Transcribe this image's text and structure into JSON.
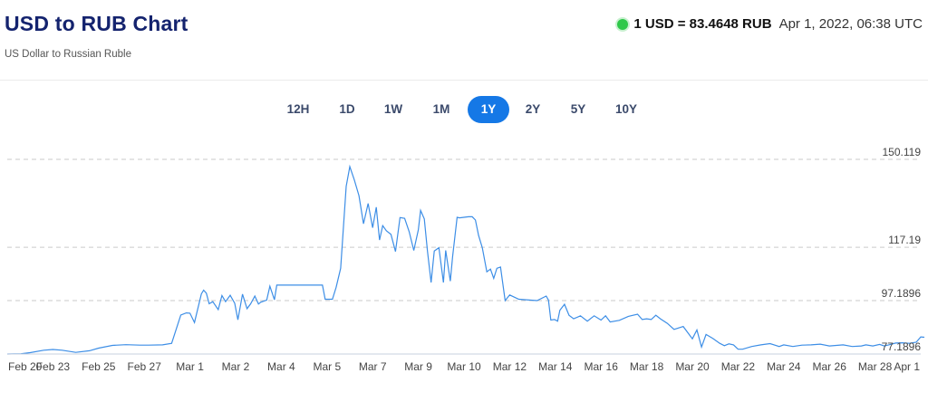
{
  "header": {
    "title": "USD to RUB Chart",
    "subtitle": "US Dollar to Russian Ruble",
    "rate": "1 USD = 83.4648 RUB",
    "timestamp": "Apr 1, 2022, 06:38 UTC",
    "live_color": "#2fc84a"
  },
  "ranges": {
    "items": [
      "12H",
      "1D",
      "1W",
      "1M",
      "1Y",
      "2Y",
      "5Y",
      "10Y"
    ],
    "active": "1Y",
    "accent": "#1578e6"
  },
  "chart_data": {
    "type": "line",
    "title": "",
    "xlabel": "",
    "ylabel": "",
    "ylim": [
      77.1896,
      150.119
    ],
    "y_ticks": [
      150.119,
      117.19,
      97.1896,
      77.1896
    ],
    "x_ticks": [
      "Feb 20",
      "Feb 23",
      "Feb 25",
      "Feb 27",
      "Mar 1",
      "Mar 2",
      "Mar 4",
      "Mar 5",
      "Mar 7",
      "Mar 9",
      "Mar 10",
      "Mar 12",
      "Mar 14",
      "Mar 16",
      "Mar 18",
      "Mar 20",
      "Mar 22",
      "Mar 24",
      "Mar 26",
      "Mar 28",
      "Apr 1"
    ],
    "line_color": "#3d8ee6",
    "grid": "horizontal dashed",
    "series": [
      {
        "x": [
          0,
          0.3,
          0.5,
          0.8,
          1.0,
          1.2,
          1.5,
          1.8,
          2.0,
          2.3,
          2.6,
          2.9,
          3.1,
          3.4,
          3.6,
          3.8,
          3.92,
          4.0,
          4.1,
          4.25,
          4.3,
          4.36,
          4.42,
          4.5,
          4.62,
          4.7,
          4.78,
          4.88,
          4.98,
          5.05,
          5.15,
          5.25,
          5.33,
          5.42,
          5.5,
          5.55,
          5.68,
          5.75,
          5.85,
          5.9,
          6.3,
          6.7,
          6.9,
          6.96,
          7.02,
          7.12,
          7.2,
          7.3,
          7.42,
          7.5,
          7.6,
          7.7,
          7.8,
          7.9,
          8.0,
          8.08,
          8.15,
          8.22,
          8.3,
          8.4,
          8.5,
          8.6,
          8.7,
          8.8,
          8.9,
          9.0,
          9.05,
          9.13,
          9.2,
          9.28,
          9.35,
          9.45,
          9.55,
          9.6,
          9.7,
          9.75,
          9.85,
          9.9,
          10.0,
          10.1,
          10.18,
          10.25,
          10.32,
          10.4,
          10.5,
          10.58,
          10.65,
          10.72,
          10.8,
          10.9,
          11.0,
          11.2,
          11.6,
          11.8,
          11.85,
          11.9,
          11.98,
          12.05,
          12.1,
          12.2,
          12.3,
          12.4,
          12.55,
          12.7,
          12.85,
          13.0,
          13.1,
          13.2,
          13.4,
          13.6,
          13.8,
          13.9,
          14.0,
          14.1,
          14.2,
          14.3,
          14.45,
          14.6,
          14.8,
          15.0,
          15.1,
          15.2,
          15.3,
          15.45,
          15.6,
          15.7,
          15.8,
          15.9,
          16.0,
          16.1,
          16.3,
          16.5,
          16.7,
          16.9,
          17.0,
          17.2,
          17.4,
          17.6,
          17.8,
          18.0,
          18.3,
          18.5,
          18.7,
          18.8,
          18.95,
          19.1,
          19.2,
          19.3,
          19.45,
          19.6,
          19.75,
          19.9,
          20.0,
          20.08
        ],
        "values": [
          77.19,
          77.3,
          77.7,
          78.6,
          78.9,
          78.6,
          77.8,
          78.4,
          79.4,
          80.4,
          80.7,
          80.5,
          80.5,
          80.6,
          81.2,
          91.8,
          92.6,
          92.5,
          89.0,
          99.7,
          101.1,
          100.0,
          96.0,
          96.8,
          93.8,
          99.1,
          96.8,
          99.2,
          96.2,
          90.0,
          99.6,
          94.2,
          96.0,
          98.9,
          95.9,
          96.6,
          97.4,
          102.6,
          97.5,
          103.0,
          103.0,
          103.0,
          103.0,
          97.7,
          97.7,
          97.7,
          102.2,
          109.3,
          140.0,
          147.4,
          142.4,
          136.5,
          126.0,
          133.6,
          124.5,
          132.2,
          119.9,
          125.3,
          123.4,
          122.0,
          115.6,
          128.3,
          128.0,
          123.0,
          116.0,
          123.7,
          131.0,
          127.8,
          115.7,
          104.0,
          115.8,
          117.0,
          104.0,
          116.0,
          104.5,
          113.6,
          128.4,
          128.2,
          128.4,
          128.6,
          128.6,
          127.4,
          121.6,
          117.0,
          108.0,
          109.0,
          105.5,
          109.3,
          109.8,
          97.2,
          99.3,
          97.7,
          97.2,
          98.9,
          97.4,
          89.9,
          90.1,
          89.5,
          93.6,
          95.8,
          91.7,
          90.4,
          91.5,
          89.5,
          91.5,
          89.9,
          91.5,
          89.2,
          89.8,
          91.3,
          92.1,
          90.1,
          90.4,
          90.1,
          91.7,
          90.4,
          88.7,
          86.4,
          87.5,
          82.9,
          86.2,
          79.8,
          84.5,
          83.0,
          81.2,
          80.3,
          81.0,
          80.6,
          79.0,
          79.0,
          80.0,
          80.6,
          81.1,
          80.0,
          80.6,
          80.0,
          80.5,
          80.6,
          80.9,
          80.2,
          80.6,
          80.0,
          80.2,
          80.6,
          80.2,
          80.8,
          80.2,
          80.6,
          81.3,
          81.4,
          81.2,
          81.6,
          83.6,
          83.46
        ]
      }
    ]
  }
}
